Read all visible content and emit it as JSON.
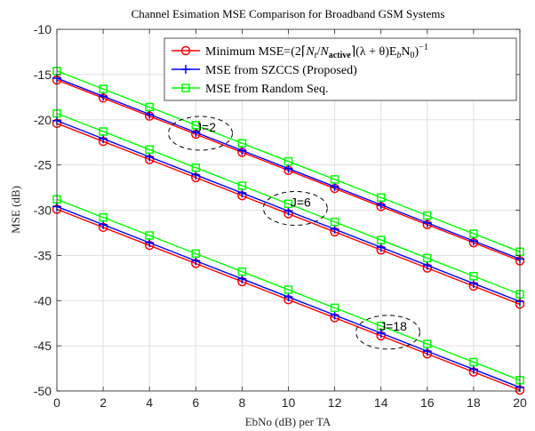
{
  "chart_data": {
    "type": "line",
    "title": "Channel Esimation MSE Comparison for Broadband GSM Systems",
    "xlabel": "EbNo (dB) per TA",
    "ylabel": "MSE (dB)",
    "xlim": [
      0,
      20
    ],
    "ylim": [
      -50,
      -10
    ],
    "xticks": [
      0,
      2,
      4,
      6,
      8,
      10,
      12,
      14,
      16,
      18,
      20
    ],
    "yticks": [
      -10,
      -15,
      -20,
      -25,
      -30,
      -35,
      -40,
      -45,
      -50
    ],
    "grid": true,
    "legend_position": "top-right",
    "legend": [
      {
        "label": "Minimum MSE=(2⌈N_t/N_active⌉(λ+θ)E_bN_0)^{-1}",
        "color": "#ff0000",
        "marker": "circle"
      },
      {
        "label": "MSE from SZCCS (Proposed)",
        "color": "#0000ff",
        "marker": "plus"
      },
      {
        "label": "MSE from Random Seq.",
        "color": "#00ff00",
        "marker": "square"
      }
    ],
    "x": [
      0,
      2,
      4,
      6,
      8,
      10,
      12,
      14,
      16,
      18,
      20
    ],
    "series": [
      {
        "group": "J=2",
        "style": "min",
        "values": [
          -15.6,
          -17.6,
          -19.6,
          -21.6,
          -23.6,
          -25.6,
          -27.6,
          -29.6,
          -31.6,
          -33.6,
          -35.6
        ]
      },
      {
        "group": "J=2",
        "style": "szccs",
        "values": [
          -15.4,
          -17.4,
          -19.4,
          -21.4,
          -23.4,
          -25.4,
          -27.4,
          -29.4,
          -31.4,
          -33.4,
          -35.4
        ]
      },
      {
        "group": "J=2",
        "style": "random",
        "values": [
          -14.6,
          -16.6,
          -18.6,
          -20.6,
          -22.6,
          -24.6,
          -26.6,
          -28.6,
          -30.6,
          -32.6,
          -34.6
        ]
      },
      {
        "group": "J=6",
        "style": "min",
        "values": [
          -20.4,
          -22.4,
          -24.4,
          -26.4,
          -28.4,
          -30.4,
          -32.4,
          -34.4,
          -36.4,
          -38.4,
          -40.4
        ]
      },
      {
        "group": "J=6",
        "style": "szccs",
        "values": [
          -20.1,
          -22.1,
          -24.1,
          -26.1,
          -28.1,
          -30.1,
          -32.1,
          -34.1,
          -36.1,
          -38.1,
          -40.1
        ]
      },
      {
        "group": "J=6",
        "style": "random",
        "values": [
          -19.3,
          -21.3,
          -23.3,
          -25.3,
          -27.3,
          -29.3,
          -31.3,
          -33.3,
          -35.3,
          -37.3,
          -39.3
        ]
      },
      {
        "group": "J=18",
        "style": "min",
        "values": [
          -29.9,
          -31.9,
          -33.9,
          -35.9,
          -37.9,
          -39.9,
          -41.9,
          -43.9,
          -45.9,
          -47.9,
          -49.9
        ]
      },
      {
        "group": "J=18",
        "style": "szccs",
        "values": [
          -29.6,
          -31.6,
          -33.6,
          -35.6,
          -37.6,
          -39.6,
          -41.6,
          -43.6,
          -45.6,
          -47.6,
          -49.6
        ]
      },
      {
        "group": "J=18",
        "style": "random",
        "values": [
          -28.8,
          -30.8,
          -32.8,
          -34.8,
          -36.8,
          -38.8,
          -40.8,
          -42.8,
          -44.8,
          -46.8,
          -48.8
        ]
      }
    ],
    "annotations": [
      {
        "text": "J=2",
        "x": 6.2,
        "y": -21.5
      },
      {
        "text": "J=6",
        "x": 10.3,
        "y": -29.8
      },
      {
        "text": "J=18",
        "x": 14.3,
        "y": -43.5
      }
    ]
  }
}
